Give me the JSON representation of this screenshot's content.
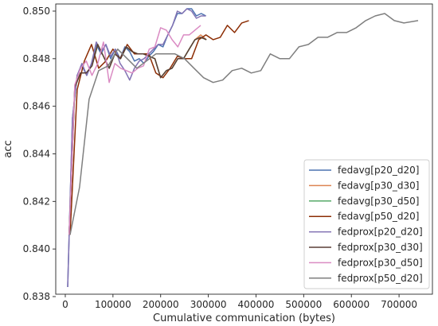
{
  "chart_data": {
    "type": "line",
    "xlabel": "Cumulative communication (bytes)",
    "ylabel": "acc",
    "xlim": [
      -20000,
      770000
    ],
    "ylim": [
      0.8381,
      0.8503
    ],
    "xticks": [
      0,
      100000,
      200000,
      300000,
      400000,
      500000,
      600000,
      700000
    ],
    "xtick_labels": [
      "0",
      "100000",
      "200000",
      "300000",
      "400000",
      "500000",
      "600000",
      "700000"
    ],
    "yticks": [
      0.838,
      0.84,
      0.842,
      0.844,
      0.846,
      0.848,
      0.85
    ],
    "ytick_labels": [
      "0.838",
      "0.840",
      "0.842",
      "0.844",
      "0.846",
      "0.848",
      "0.850"
    ],
    "grid": false,
    "legend_position": "lower-right",
    "series": [
      {
        "name": "fedavg[p20_d20]",
        "color": "#4c72b0",
        "x": [
          5000,
          15000,
          25000,
          35000,
          45000,
          55000,
          65000,
          75000,
          85000,
          95000,
          105000,
          115000,
          125000,
          135000,
          145000,
          155000,
          165000,
          175000,
          185000,
          195000,
          205000,
          215000,
          225000,
          235000,
          245000,
          255000,
          265000,
          275000,
          285000,
          295000
        ],
        "y": [
          0.8384,
          0.8455,
          0.8473,
          0.8477,
          0.8473,
          0.8478,
          0.8486,
          0.8482,
          0.8486,
          0.848,
          0.8484,
          0.848,
          0.8485,
          0.8483,
          0.8479,
          0.848,
          0.8478,
          0.8481,
          0.8483,
          0.8486,
          0.8485,
          0.849,
          0.8494,
          0.8499,
          0.8499,
          0.8501,
          0.8501,
          0.8498,
          0.8499,
          0.8498
        ]
      },
      {
        "name": "fedavg[p30_d30]",
        "color": "#dd8452",
        "x": [
          8000,
          20000,
          32000,
          44000,
          56000,
          68000,
          80000,
          92000,
          104000,
          116000,
          128000,
          140000,
          152000,
          164000,
          176000,
          188000,
          200000,
          212000,
          224000,
          236000,
          248000,
          260000,
          272000,
          284000,
          296000
        ],
        "y": [
          0.8406,
          0.8468,
          0.8474,
          0.8474,
          0.8477,
          0.8486,
          0.8481,
          0.8476,
          0.8482,
          0.848,
          0.8485,
          0.8483,
          0.8482,
          0.8482,
          0.8481,
          0.848,
          0.8472,
          0.8475,
          0.8476,
          0.848,
          0.848,
          0.8484,
          0.8488,
          0.849,
          0.8488
        ]
      },
      {
        "name": "fedavg[p30_d50]",
        "color": "#55a868",
        "x": [
          8000,
          20000,
          32000,
          44000,
          56000,
          68000,
          80000,
          92000,
          104000,
          116000,
          128000,
          140000,
          152000,
          164000,
          176000,
          188000,
          200000,
          212000,
          224000,
          236000,
          248000,
          260000,
          272000,
          284000,
          296000
        ],
        "y": [
          0.8406,
          0.8468,
          0.8474,
          0.8474,
          0.8477,
          0.8486,
          0.8481,
          0.8476,
          0.8482,
          0.848,
          0.8485,
          0.8483,
          0.8482,
          0.8482,
          0.8481,
          0.848,
          0.8472,
          0.8475,
          0.8476,
          0.848,
          0.848,
          0.8484,
          0.8488,
          0.8489,
          0.8488
        ]
      },
      {
        "name": "fedavg[p50_d20]",
        "color": "#8c2d04",
        "x": [
          10000,
          25000,
          40000,
          55000,
          70000,
          85000,
          100000,
          115000,
          130000,
          145000,
          160000,
          175000,
          190000,
          205000,
          220000,
          235000,
          250000,
          265000,
          280000,
          295000,
          310000,
          325000,
          340000,
          355000,
          370000,
          385000
        ],
        "y": [
          0.8406,
          0.8467,
          0.8479,
          0.8486,
          0.8476,
          0.8479,
          0.8484,
          0.848,
          0.8486,
          0.8482,
          0.8482,
          0.8482,
          0.8474,
          0.8472,
          0.8476,
          0.8481,
          0.848,
          0.848,
          0.8488,
          0.849,
          0.8488,
          0.8489,
          0.8494,
          0.8491,
          0.8495,
          0.8496
        ]
      },
      {
        "name": "fedprox[p20_d20]",
        "color": "#8172b3",
        "x": [
          5000,
          15000,
          25000,
          35000,
          45000,
          55000,
          65000,
          75000,
          85000,
          95000,
          105000,
          115000,
          125000,
          135000,
          145000,
          155000,
          165000,
          175000,
          185000,
          195000,
          205000,
          215000,
          225000,
          235000,
          245000,
          255000,
          265000,
          275000,
          285000,
          295000
        ],
        "y": [
          0.8384,
          0.8455,
          0.8473,
          0.8478,
          0.8473,
          0.8478,
          0.8487,
          0.8483,
          0.8486,
          0.8481,
          0.8484,
          0.8478,
          0.8475,
          0.8471,
          0.8476,
          0.8479,
          0.848,
          0.8482,
          0.8484,
          0.8486,
          0.8486,
          0.849,
          0.8494,
          0.85,
          0.8499,
          0.8501,
          0.85,
          0.8497,
          0.8498,
          0.8498
        ]
      },
      {
        "name": "fedprox[p30_d30]",
        "color": "#5a3e36",
        "x": [
          8000,
          20000,
          32000,
          44000,
          56000,
          68000,
          80000,
          92000,
          104000,
          116000,
          128000,
          140000,
          152000,
          164000,
          176000,
          188000,
          200000,
          212000,
          224000,
          236000,
          248000,
          260000,
          272000,
          284000,
          296000
        ],
        "y": [
          0.8406,
          0.8468,
          0.8474,
          0.8474,
          0.8477,
          0.8486,
          0.8481,
          0.8476,
          0.8482,
          0.848,
          0.8485,
          0.8483,
          0.8482,
          0.8482,
          0.8481,
          0.848,
          0.8472,
          0.8475,
          0.8476,
          0.848,
          0.848,
          0.8484,
          0.8488,
          0.8489,
          0.8488
        ]
      },
      {
        "name": "fedprox[p30_d50]",
        "color": "#da8bc3",
        "x": [
          8000,
          20000,
          32000,
          44000,
          56000,
          68000,
          80000,
          92000,
          104000,
          116000,
          128000,
          140000,
          152000,
          164000,
          176000,
          188000,
          200000,
          212000,
          224000,
          236000,
          248000,
          260000,
          272000,
          284000
        ],
        "y": [
          0.8406,
          0.8469,
          0.8476,
          0.8479,
          0.8473,
          0.8478,
          0.8487,
          0.847,
          0.8478,
          0.8476,
          0.8475,
          0.8474,
          0.8476,
          0.8477,
          0.8484,
          0.8485,
          0.8493,
          0.8492,
          0.8488,
          0.8485,
          0.849,
          0.849,
          0.8492,
          0.8494
        ]
      },
      {
        "name": "fedprox[p50_d20]",
        "color": "#7f7f7f",
        "x": [
          10000,
          30000,
          50000,
          70000,
          90000,
          110000,
          130000,
          150000,
          170000,
          190000,
          210000,
          230000,
          250000,
          270000,
          290000,
          310000,
          330000,
          350000,
          370000,
          390000,
          410000,
          430000,
          450000,
          470000,
          490000,
          510000,
          530000,
          550000,
          570000,
          590000,
          610000,
          630000,
          650000,
          670000,
          690000,
          710000,
          740000
        ],
        "y": [
          0.8406,
          0.8426,
          0.8463,
          0.8475,
          0.8477,
          0.8484,
          0.848,
          0.8476,
          0.8479,
          0.8482,
          0.8482,
          0.8482,
          0.848,
          0.8476,
          0.8472,
          0.847,
          0.8471,
          0.8475,
          0.8476,
          0.8474,
          0.8475,
          0.8482,
          0.848,
          0.848,
          0.8485,
          0.8486,
          0.8489,
          0.8489,
          0.8491,
          0.8491,
          0.8493,
          0.8496,
          0.8498,
          0.8499,
          0.8496,
          0.8495,
          0.8496
        ]
      }
    ]
  }
}
